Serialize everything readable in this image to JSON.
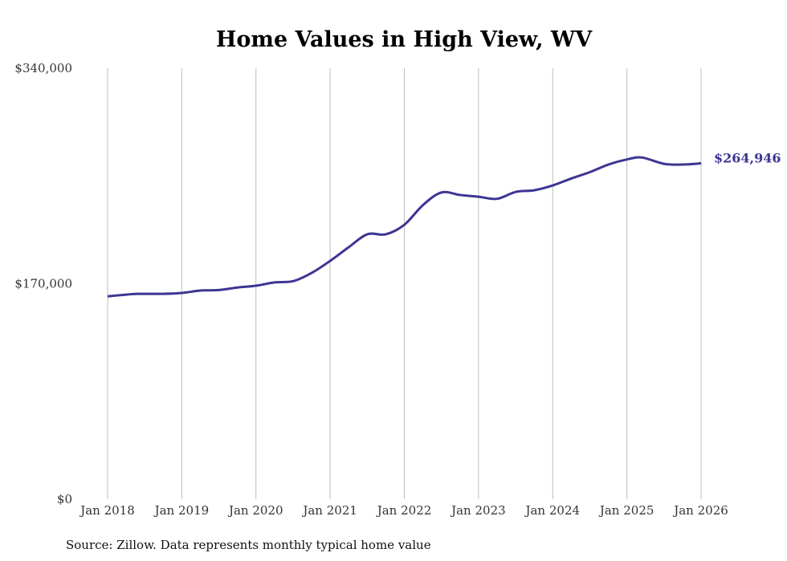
{
  "chart_data": {
    "type": "line",
    "title": "Home Values in High View, WV",
    "xlabel": "",
    "ylabel": "",
    "source": "Source: Zillow. Data represents monthly typical home value",
    "ylim": [
      0,
      340000
    ],
    "xlim": [
      2018.0,
      2026.0
    ],
    "y_ticks": [
      0,
      170000,
      340000
    ],
    "y_tick_labels": [
      "$0",
      "$170,000",
      "$340,000"
    ],
    "x_ticks": [
      2018,
      2019,
      2020,
      2021,
      2022,
      2023,
      2024,
      2025,
      2026
    ],
    "x_tick_labels": [
      "Jan 2018",
      "Jan 2019",
      "Jan 2020",
      "Jan 2021",
      "Jan 2022",
      "Jan 2023",
      "Jan 2024",
      "Jan 2025",
      "Jan 2026"
    ],
    "grid": "vertical",
    "end_label": "$264,946",
    "color": "#3d3593",
    "series": [
      {
        "name": "Typical home value",
        "x": [
          2018.0,
          2018.25,
          2018.4,
          2018.75,
          2019.0,
          2019.25,
          2019.5,
          2019.75,
          2020.0,
          2020.25,
          2020.5,
          2020.75,
          2021.0,
          2021.25,
          2021.5,
          2021.75,
          2022.0,
          2022.25,
          2022.5,
          2022.75,
          2023.0,
          2023.25,
          2023.5,
          2023.75,
          2024.0,
          2024.25,
          2024.5,
          2024.75,
          2025.0,
          2025.2,
          2025.5,
          2025.75,
          2026.0
        ],
        "values": [
          160000,
          161400,
          162000,
          162000,
          162700,
          164600,
          165000,
          167000,
          168400,
          171000,
          172000,
          178500,
          188000,
          198800,
          209000,
          209000,
          216500,
          232000,
          242000,
          240000,
          238600,
          237000,
          242400,
          243700,
          247500,
          253000,
          258000,
          264000,
          268000,
          269600,
          264600,
          264000,
          264946
        ]
      }
    ]
  }
}
